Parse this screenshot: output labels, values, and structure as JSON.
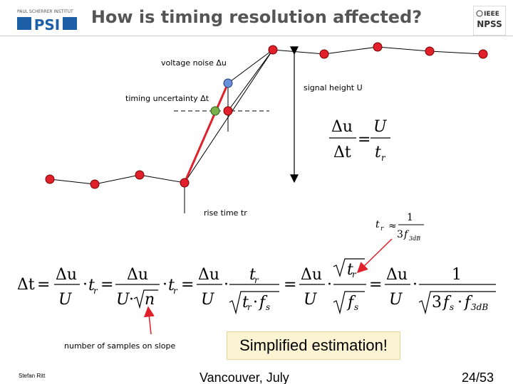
{
  "slide": {
    "title": "How is timing resolution affected?"
  },
  "logos": {
    "psi_text": "PAUL SCHERRER INSTITUT",
    "psi_mark": "PSI",
    "ieee_text": "IEEE",
    "npss_text": "NPSS"
  },
  "diagram": {
    "voltage_noise": "voltage noise Δu",
    "timing_uncertainty": "timing uncertainty Δt",
    "signal_height": "signal height U",
    "rise_time": "rise time tr",
    "n_samples": "number of samples on slope",
    "point_color": "#e0202a",
    "noise_point_color": "#6a8fd8",
    "cross_point_color": "#7ab04a"
  },
  "callout": {
    "text": "Simplified estimation!"
  },
  "footer": {
    "author": "Stefan Ritt",
    "location": "Vancouver, July",
    "page": "24/53"
  }
}
